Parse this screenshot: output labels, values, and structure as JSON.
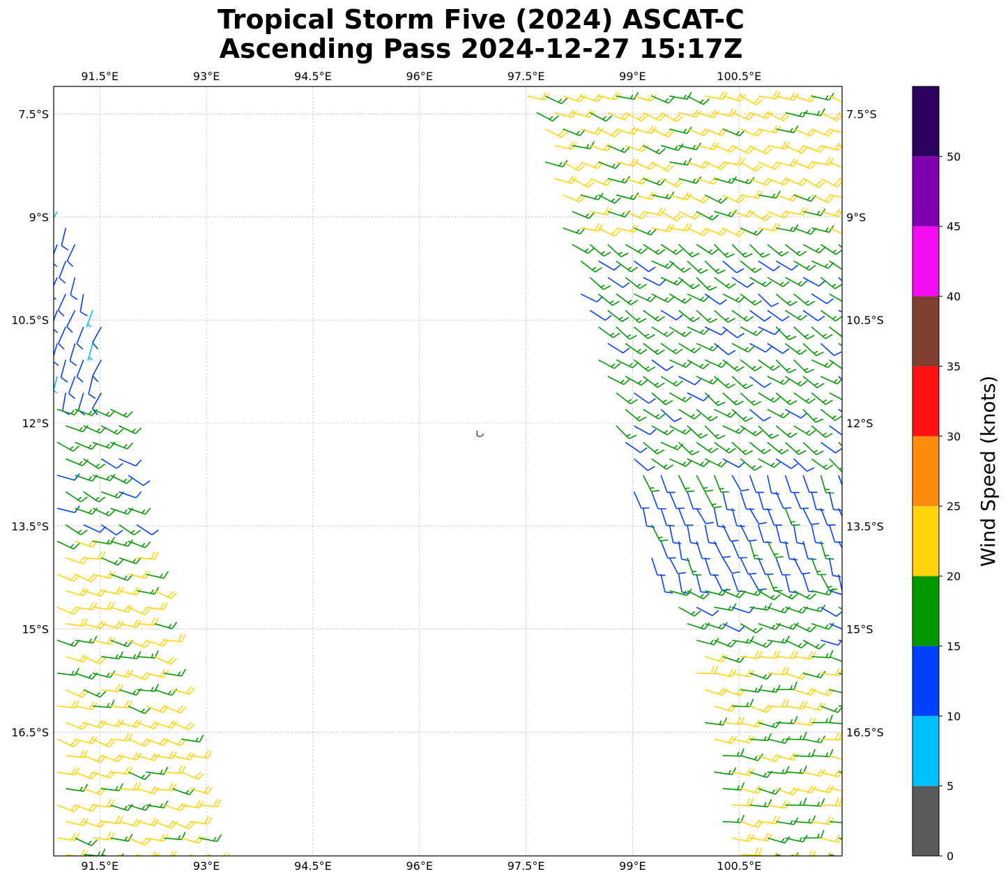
{
  "title": {
    "line1": "Tropical Storm Five (2024) ASCAT-C",
    "line2": "Ascending Pass 2024-12-27 15:17Z"
  },
  "map": {
    "lon_range": [
      90.85,
      101.95
    ],
    "lat_range": [
      -18.3,
      -7.1
    ],
    "lon_ticks": [
      {
        "value": 91.5,
        "label": "91.5°E"
      },
      {
        "value": 93.0,
        "label": "93°E"
      },
      {
        "value": 94.5,
        "label": "94.5°E"
      },
      {
        "value": 96.0,
        "label": "96°E"
      },
      {
        "value": 97.5,
        "label": "97.5°E"
      },
      {
        "value": 99.0,
        "label": "99°E"
      },
      {
        "value": 100.5,
        "label": "100.5°E"
      }
    ],
    "lat_ticks": [
      {
        "value": -7.5,
        "label": "7.5°S"
      },
      {
        "value": -9.0,
        "label": "9°S"
      },
      {
        "value": -10.5,
        "label": "10.5°S"
      },
      {
        "value": -12.0,
        "label": "12°S"
      },
      {
        "value": -13.5,
        "label": "13.5°S"
      },
      {
        "value": -15.0,
        "label": "15°S"
      },
      {
        "value": -16.5,
        "label": "16.5°S"
      }
    ],
    "grid": true,
    "land_features": [
      {
        "name": "Cocos (Keeling) Islands",
        "lon": 96.85,
        "lat": -12.15
      }
    ]
  },
  "colorbar": {
    "label": "Wind Speed (knots)",
    "ticks": [
      0,
      5,
      10,
      15,
      20,
      25,
      30,
      35,
      40,
      45,
      50
    ],
    "segments": [
      {
        "min": 0,
        "max": 5,
        "color": "#595959"
      },
      {
        "min": 5,
        "max": 10,
        "color": "#00bfff"
      },
      {
        "min": 10,
        "max": 15,
        "color": "#0040ff"
      },
      {
        "min": 15,
        "max": 20,
        "color": "#009900"
      },
      {
        "min": 20,
        "max": 25,
        "color": "#ffd40f"
      },
      {
        "min": 25,
        "max": 30,
        "color": "#ff8c0f"
      },
      {
        "min": 30,
        "max": 35,
        "color": "#ff1111"
      },
      {
        "min": 35,
        "max": 40,
        "color": "#7f3f2f"
      },
      {
        "min": 40,
        "max": 45,
        "color": "#f20cf2"
      },
      {
        "min": 45,
        "max": 50,
        "color": "#8000b2"
      },
      {
        "min": 50,
        "max": 55,
        "color": "#2d0060"
      }
    ]
  },
  "swaths": [
    {
      "name": "western-swath",
      "left_edge": [
        [
          90.85,
          -8.3
        ],
        [
          90.85,
          -18.3
        ]
      ],
      "right_edge": [
        [
          91.55,
          -10.7
        ],
        [
          91.55,
          -11.0
        ],
        [
          93.1,
          -18.3
        ]
      ],
      "top_lat": -8.3,
      "wind_regions": [
        {
          "lat_max": -7.0,
          "lat_min": -11.6,
          "speed": 12,
          "dir": 200
        },
        {
          "lat_max": -11.6,
          "lat_min": -13.5,
          "speed": 17,
          "dir": 115
        },
        {
          "lat_max": -13.5,
          "lat_min": -18.4,
          "speed": 21,
          "dir": 105
        }
      ]
    },
    {
      "name": "eastern-swath",
      "left_edge": [
        [
          97.45,
          -7.1
        ],
        [
          99.5,
          -14.9
        ],
        [
          99.8,
          -15.0
        ],
        [
          100.3,
          -18.3
        ]
      ],
      "right_edge": [
        [
          101.95,
          -7.1
        ],
        [
          101.95,
          -18.3
        ]
      ],
      "wind_regions": [
        {
          "lat_max": -7.0,
          "lat_min": -9.3,
          "speed": 21,
          "dir": 110
        },
        {
          "lat_max": -9.3,
          "lat_min": -12.6,
          "speed": 17,
          "dir": 125
        },
        {
          "lat_max": -12.6,
          "lat_min": -14.3,
          "speed": 13,
          "dir": 160
        },
        {
          "lat_max": -14.3,
          "lat_min": -15.2,
          "speed": 17,
          "dir": 110
        },
        {
          "lat_max": -15.2,
          "lat_min": -18.4,
          "speed": 21,
          "dir": 100
        }
      ]
    }
  ]
}
